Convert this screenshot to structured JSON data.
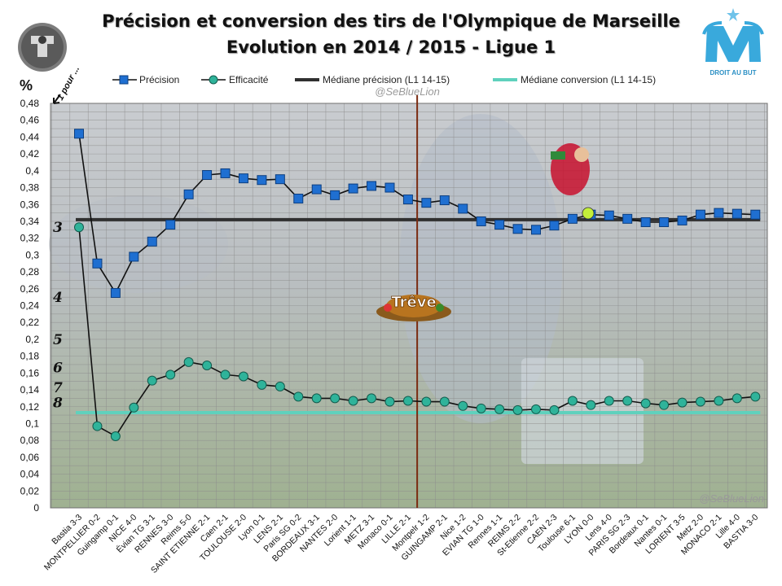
{
  "header": {
    "title_line1": "Précision et conversion des tirs de l'Olympique de Marseille",
    "title_line2": "Evolution en 2014 /  2015 - Ligue 1",
    "club_logo_caption": "DROIT AU BUT",
    "watermark_top": "@SeBlueLion",
    "watermark_bottom": "@SeBlueLion",
    "y_unit": "%",
    "ratio_hint": "1 pour ...",
    "break_label": "Trêve"
  },
  "colors": {
    "precision": "#1f6fd1",
    "efficacite": "#2fb39a",
    "median_precision": "#303030",
    "median_conversion": "#5fd1bd",
    "break_line": "#7a2a10",
    "grid": "#8c8c8c"
  },
  "chart_data": {
    "type": "line",
    "title": "Précision et conversion des tirs de l'Olympique de Marseille - Evolution en 2014 / 2015 - Ligue 1",
    "ylabel": "%",
    "ylim": [
      0,
      0.48
    ],
    "yticks": [
      "0",
      "0,02",
      "0,04",
      "0,06",
      "0,08",
      "0,1",
      "0,12",
      "0,14",
      "0,16",
      "0,18",
      "0,2",
      "0,22",
      "0,24",
      "0,26",
      "0,28",
      "0,3",
      "0,32",
      "0,34",
      "0,36",
      "0,38",
      "0,4",
      "0,42",
      "0,44",
      "0,46",
      "0,48"
    ],
    "grid": true,
    "categories": [
      "Bastia 3-3",
      "MONTPELLIER 0-2",
      "Guingamp 0-1",
      "NICE 4-0",
      "Évian TG 3-1",
      "RENNES 3-0",
      "Reims 5-0",
      "SAINT ETIENNE 2-1",
      "Caen 2-1",
      "TOULOUSE 2-0",
      "Lyon 0-1",
      "LENS 2-1",
      "Paris SG 0-2",
      "BORDEAUX 3-1",
      "NANTES 2-0",
      "Lorient 1-1",
      "METZ 3-1",
      "Monaco 0-1",
      "LILLE 2-1",
      "Montpelr 1-2",
      "GUINGAMP 2-1",
      "Nice 1-2",
      "EVIAN TG 1-0",
      "Rennes 1-1",
      "REIMS 2-2",
      "St-Etienne 2-2",
      "CAEN 2-3",
      "Toulouse 6-1",
      "LYON 0-0",
      "Lens 4-0",
      "PARIS SG 2-3",
      "Bordeaux 0-1",
      "Nantes 0-1",
      "LORIENT 3-5",
      "Metz 2-0",
      "MONACO 2-1",
      "Lille 4-0",
      "BASTIA 3-0"
    ],
    "series": [
      {
        "name": "Précision",
        "marker": "square",
        "values": [
          0.444,
          0.29,
          0.255,
          0.298,
          0.316,
          0.336,
          0.372,
          0.395,
          0.397,
          0.391,
          0.389,
          0.39,
          0.367,
          0.378,
          0.371,
          0.379,
          0.382,
          0.38,
          0.366,
          0.362,
          0.365,
          0.355,
          0.34,
          0.336,
          0.331,
          0.33,
          0.335,
          0.343,
          0.348,
          0.347,
          0.343,
          0.339,
          0.339,
          0.341,
          0.348,
          0.35,
          0.349,
          0.348
        ]
      },
      {
        "name": "Efficacité",
        "marker": "circle",
        "values": [
          0.333,
          0.097,
          0.085,
          0.119,
          0.151,
          0.158,
          0.173,
          0.169,
          0.158,
          0.156,
          0.146,
          0.144,
          0.132,
          0.13,
          0.13,
          0.127,
          0.13,
          0.126,
          0.127,
          0.126,
          0.126,
          0.121,
          0.118,
          0.117,
          0.116,
          0.117,
          0.116,
          0.127,
          0.122,
          0.127,
          0.127,
          0.124,
          0.122,
          0.125,
          0.126,
          0.127,
          0.13,
          0.132
        ]
      }
    ],
    "reference_lines": [
      {
        "name": "Médiane  précision  (L1  14-15)",
        "value": 0.342
      },
      {
        "name": "Médiane  conversion  (L1  14-15)",
        "value": 0.113
      }
    ],
    "ratio_labels": [
      {
        "label": "3",
        "value": 0.3333
      },
      {
        "label": "4",
        "value": 0.25
      },
      {
        "label": "5",
        "value": 0.2
      },
      {
        "label": "6",
        "value": 0.1667
      },
      {
        "label": "7",
        "value": 0.1429
      },
      {
        "label": "8",
        "value": 0.125
      }
    ],
    "break_after_index": 18,
    "legend": [
      "Précision",
      "Efficacité",
      "Médiane  précision  (L1  14-15)",
      "Médiane  conversion  (L1  14-15)"
    ],
    "legend_position": "top"
  }
}
